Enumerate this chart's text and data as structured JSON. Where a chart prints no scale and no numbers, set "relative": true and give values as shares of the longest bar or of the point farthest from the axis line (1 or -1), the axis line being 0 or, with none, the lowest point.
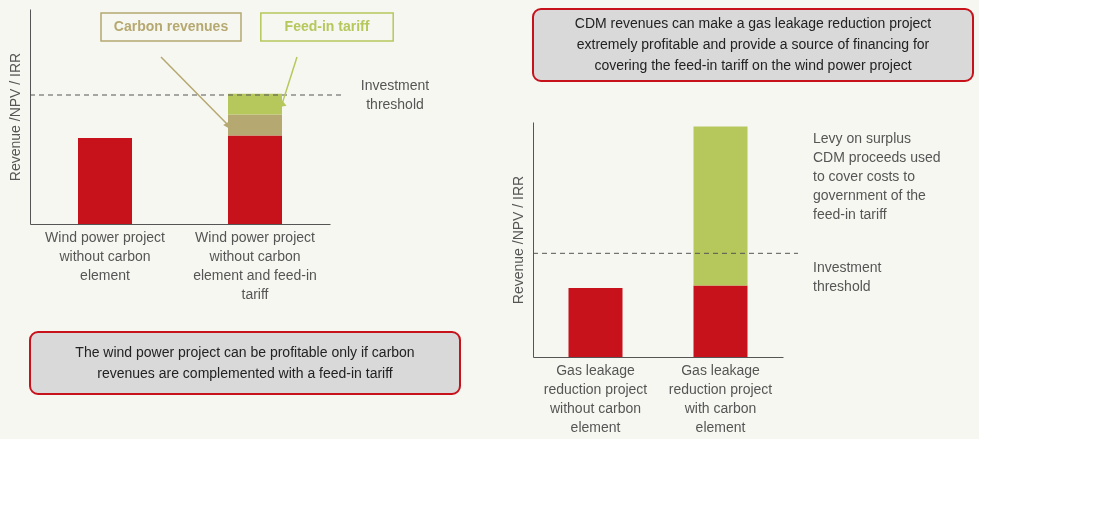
{
  "chart_data": [
    {
      "type": "bar",
      "stacked": true,
      "relative": true,
      "ylabel": "Revenue /NPV / IRR",
      "legend": false,
      "grid": false,
      "categories": [
        "Wind power project without carbon element",
        "Wind power project without carbon element and feed-in tariff"
      ],
      "series": [
        {
          "color": "#c8121b",
          "values": [
            0.66,
            0.68
          ]
        },
        {
          "name": "Carbon revenues",
          "color": "#b5a870",
          "values": [
            0,
            0.16
          ]
        },
        {
          "name": "Feed-in tariff",
          "color": "#b6c75c",
          "values": [
            0,
            0.16
          ]
        }
      ],
      "ref_lines": [
        {
          "axis": "y",
          "value": 0.99,
          "label": "Investment threshold",
          "color": "#555555",
          "line_style": "dashed"
        }
      ],
      "annotations": [
        "The wind power project can be profitable only if carbon revenues are complemented with a feed-in tariff"
      ]
    },
    {
      "type": "bar",
      "stacked": true,
      "relative": true,
      "ylabel": "Revenue /NPV / IRR",
      "legend": false,
      "grid": false,
      "categories": [
        "Gas leakage reduction project without carbon element",
        "Gas leakage reduction project with carbon element"
      ],
      "series": [
        {
          "color": "#c8121b",
          "values": [
            0.3,
            0.31
          ]
        },
        {
          "color": "#b6c75c",
          "values": [
            0,
            0.69
          ]
        }
      ],
      "ref_lines": [
        {
          "axis": "y",
          "value": 0.45,
          "label": "Investment threshold",
          "color": "#555555",
          "line_style": "dashed"
        }
      ],
      "annotations": [
        "CDM revenues can make a gas leakage reduction project extremely profitable and provide a source of financing for covering the feed-in tariff on the wind power project",
        "Levy on surplus CDM proceeds used to cover costs to government of the feed-in tariff"
      ]
    }
  ]
}
